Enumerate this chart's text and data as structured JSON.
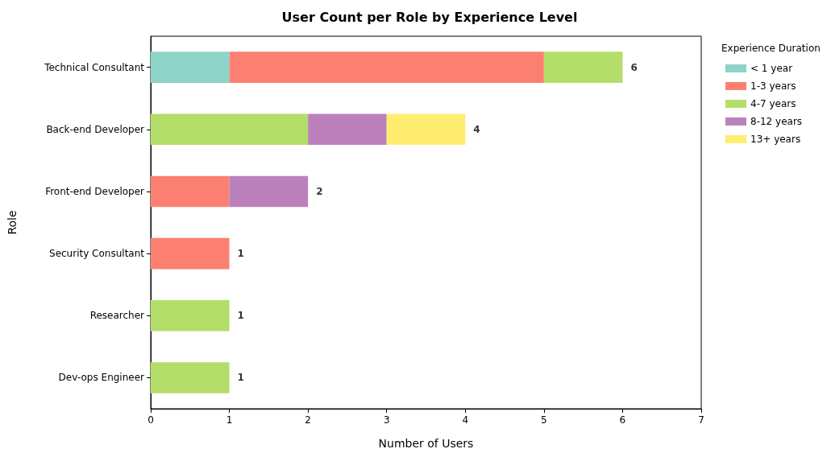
{
  "chart_data": {
    "type": "bar",
    "orientation": "horizontal",
    "stacked": true,
    "title": "User Count per Role by Experience Level",
    "xlabel": "Number of Users",
    "ylabel": "Role",
    "legend_title": "Experience Duration",
    "categories": [
      "Technical Consultant",
      "Back-end Developer",
      "Front-end Developer",
      "Security Consultant",
      "Researcher",
      "Dev-ops Engineer"
    ],
    "series": [
      {
        "name": "< 1 year",
        "color": "#8dd3c7",
        "values": [
          1,
          null,
          null,
          null,
          null,
          null
        ]
      },
      {
        "name": "1-3 years",
        "color": "#fb8072",
        "values": [
          4,
          null,
          1,
          1,
          null,
          null
        ]
      },
      {
        "name": "4-7 years",
        "color": "#b3de69",
        "values": [
          1,
          2,
          null,
          null,
          1,
          1
        ]
      },
      {
        "name": "8-12 years",
        "color": "#bc80bd",
        "values": [
          null,
          1,
          1,
          null,
          null,
          null
        ]
      },
      {
        "name": "13+ years",
        "color": "#ffed6f",
        "values": [
          null,
          1,
          null,
          null,
          null,
          null
        ]
      }
    ],
    "totals": [
      "6",
      "4",
      "2",
      "1",
      "1",
      "1"
    ],
    "xlim": [
      0,
      7
    ],
    "xticks": [
      0,
      1,
      2,
      3,
      4,
      5,
      6,
      7
    ],
    "grid": false,
    "legend": "top right"
  }
}
